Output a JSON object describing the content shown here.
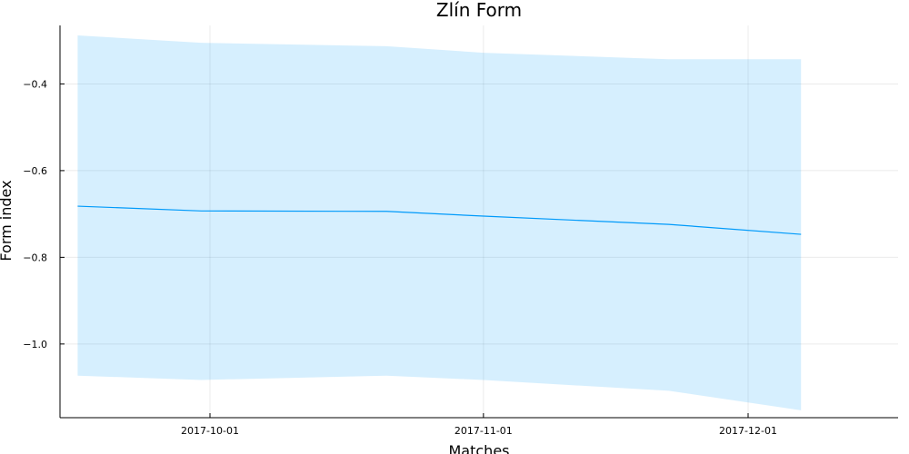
{
  "chart_data": {
    "type": "line",
    "title": "Zlín Form",
    "xlabel": "Matches",
    "ylabel": "Form index",
    "x_type": "date",
    "xlim": [
      "2017-09-14",
      "2017-12-18"
    ],
    "ylim": [
      -1.17,
      -0.265
    ],
    "x_ticks": [
      "2017-10-01",
      "2017-11-01",
      "2017-12-01"
    ],
    "y_ticks": [
      -1.0,
      -0.8,
      -0.6,
      -0.4
    ],
    "grid": true,
    "legend": false,
    "series": [
      {
        "x": [
          "2017-09-16",
          "2017-09-30",
          "2017-10-21",
          "2017-11-01",
          "2017-11-22",
          "2017-12-07"
        ],
        "y": [
          -0.682,
          -0.693,
          -0.694,
          -0.705,
          -0.724,
          -0.747
        ],
        "band_lower": [
          -1.073,
          -1.083,
          -1.073,
          -1.083,
          -1.108,
          -1.153
        ],
        "band_upper": [
          -0.288,
          -0.305,
          -0.313,
          -0.328,
          -0.343,
          -0.343
        ],
        "color": "#009AFA"
      }
    ]
  }
}
